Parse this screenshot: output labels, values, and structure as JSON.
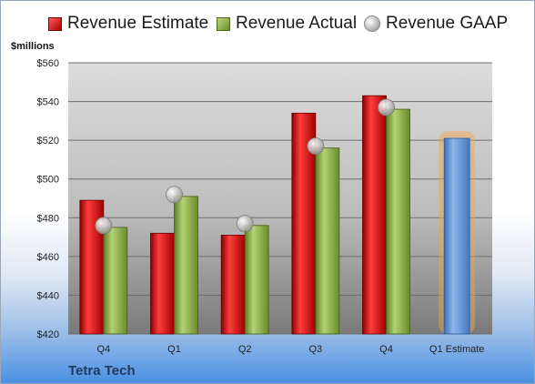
{
  "legend": {
    "estimate": "Revenue Estimate",
    "actual": "Revenue Actual",
    "gaap": "Revenue GAAP"
  },
  "company": "Tetra Tech",
  "chart_data": {
    "type": "bar",
    "ylabel": "$millions",
    "ylim": [
      420,
      560
    ],
    "yticks": [
      420,
      440,
      460,
      480,
      500,
      520,
      540,
      560
    ],
    "ytick_labels": [
      "$420",
      "$440",
      "$460",
      "$480",
      "$500",
      "$520",
      "$540",
      "$560"
    ],
    "categories": [
      "Q4",
      "Q1",
      "Q2",
      "Q3",
      "Q4",
      "Q1 Estimate"
    ],
    "grid": true,
    "legend_position": "top",
    "series": [
      {
        "name": "Revenue Estimate",
        "type": "bar",
        "color": "#d01c1c",
        "values": [
          489,
          472,
          471,
          534,
          543,
          null
        ]
      },
      {
        "name": "Revenue Actual",
        "type": "bar",
        "color": "#8bae45",
        "values": [
          475,
          491,
          476,
          516,
          536,
          null
        ]
      },
      {
        "name": "Revenue GAAP",
        "type": "scatter",
        "color": "#c8c8c8",
        "values": [
          476,
          492,
          477,
          517,
          537,
          null
        ]
      },
      {
        "name": "Q1 Estimate",
        "type": "bar",
        "color": "#5b8fd6",
        "highlight_color": "#f5a54a",
        "values": [
          null,
          null,
          null,
          null,
          null,
          521
        ]
      }
    ]
  }
}
